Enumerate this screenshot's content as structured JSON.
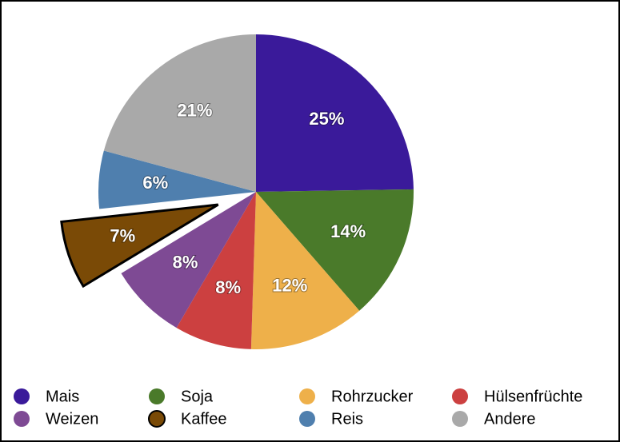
{
  "chart_data": {
    "type": "pie",
    "categories": [
      "Mais",
      "Soja",
      "Rohrzucker",
      "Hülsenfrüchte",
      "Weizen",
      "Kaffee",
      "Reis",
      "Andere"
    ],
    "values": [
      25,
      14,
      12,
      8,
      8,
      7,
      6,
      21
    ],
    "value_labels": [
      "25%",
      "14%",
      "12%",
      "8%",
      "8%",
      "7%",
      "6%",
      "21%"
    ],
    "colors": [
      "#3a1a9a",
      "#4a7a2a",
      "#eeb04a",
      "#cc4040",
      "#7e4a94",
      "#7a4a06",
      "#4f7fae",
      "#a9a9a9"
    ],
    "exploded": "Kaffee"
  }
}
